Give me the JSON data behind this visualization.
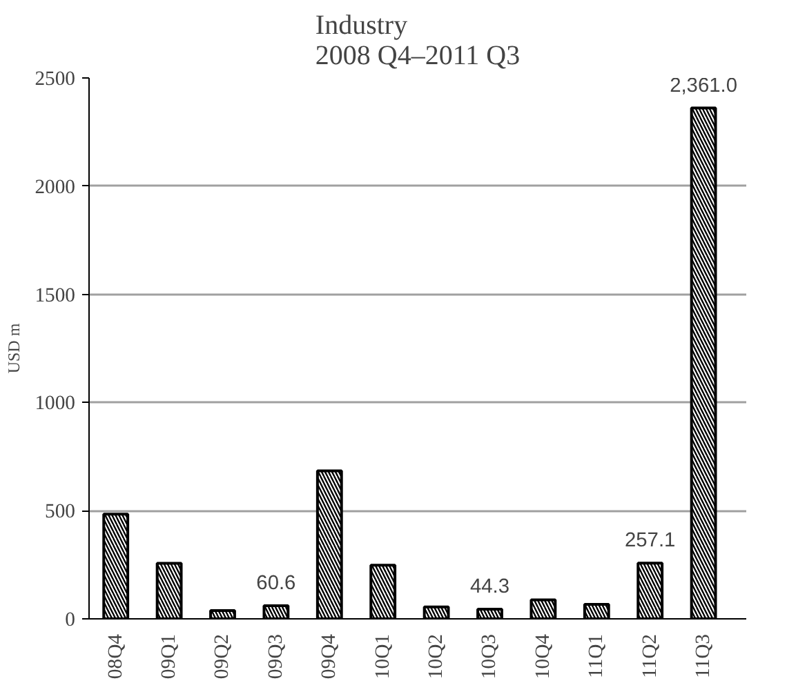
{
  "chart_data": {
    "type": "bar",
    "title": "Industry\n2008 Q4–2011 Q3",
    "ylabel": "USD m",
    "categories": [
      "08Q4",
      "09Q1",
      "09Q2",
      "09Q3",
      "09Q4",
      "10Q1",
      "10Q2",
      "10Q3",
      "10Q4",
      "11Q1",
      "11Q2",
      "11Q3"
    ],
    "values": [
      484,
      257,
      38,
      60.6,
      684,
      248,
      55,
      44.3,
      88,
      67,
      257.1,
      2361.0
    ],
    "value_labels": [
      null,
      null,
      null,
      "60.6",
      null,
      null,
      null,
      "44.3",
      null,
      null,
      "257.1",
      "2,361.0"
    ],
    "color": "#000000",
    "ylim": [
      0,
      2500
    ],
    "yticks": [
      0,
      500,
      1000,
      1500,
      2000,
      2500
    ],
    "grid": "y"
  }
}
